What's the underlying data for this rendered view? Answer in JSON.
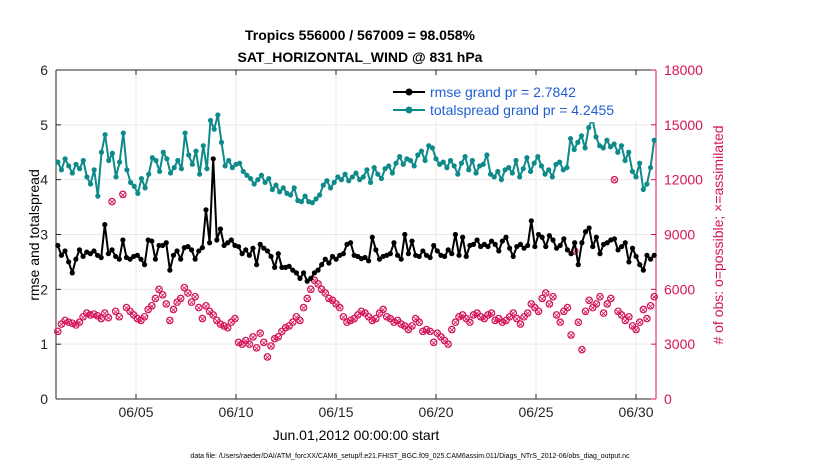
{
  "chart_data": {
    "type": "line",
    "title_line1": "Tropics 556000 / 567009 = 98.058%",
    "title_line2": "SAT_HORIZONTAL_WIND @ 831 hPa",
    "xlabel": "Jun.01,2012 00:00:00 start",
    "ylabel_left": "rmse and totalspread",
    "ylabel_right": "# of obs: o=possible; ×=assimilated",
    "footer": "data file: /Users/raeder/DAI/ATM_forcXX/CAM6_setup/f.e21.FHIST_BGC.f09_025.CAM6assim.011/Diags_NTrS_2012-06/obs_diag_output.nc",
    "x_range_days": [
      1,
      31
    ],
    "ylim_left": [
      0,
      6
    ],
    "ylim_right": [
      0,
      18000
    ],
    "x_ticks": [
      {
        "day": 5,
        "label": "06/05"
      },
      {
        "day": 10,
        "label": "06/10"
      },
      {
        "day": 15,
        "label": "06/15"
      },
      {
        "day": 20,
        "label": "06/20"
      },
      {
        "day": 25,
        "label": "06/25"
      },
      {
        "day": 30,
        "label": "06/30"
      }
    ],
    "y_ticks_left": [
      "0",
      "1",
      "2",
      "3",
      "4",
      "5",
      "6"
    ],
    "y_ticks_right": [
      "0",
      "3000",
      "6000",
      "9000",
      "12000",
      "15000",
      "18000"
    ],
    "series": [
      {
        "name": "rmse",
        "legend": "rmse grand pr = 2.7842",
        "color": "#000000",
        "values": [
          2.8,
          2.62,
          2.7,
          2.5,
          2.3,
          2.55,
          2.72,
          2.6,
          2.68,
          2.65,
          2.7,
          2.62,
          2.58,
          3.18,
          2.65,
          2.72,
          2.6,
          2.55,
          2.9,
          2.58,
          2.55,
          2.6,
          2.62,
          2.55,
          2.45,
          2.9,
          2.88,
          2.55,
          2.8,
          2.8,
          2.85,
          2.35,
          2.62,
          2.7,
          2.55,
          2.76,
          2.78,
          2.72,
          2.55,
          2.7,
          2.76,
          3.45,
          2.85,
          4.38,
          2.9,
          3.1,
          2.8,
          2.85,
          2.9,
          2.8,
          2.78,
          2.65,
          2.72,
          2.62,
          2.75,
          2.45,
          2.82,
          2.75,
          2.7,
          2.6,
          2.4,
          2.65,
          2.4,
          2.4,
          2.42,
          2.35,
          2.3,
          2.2,
          2.3,
          2.15,
          2.2,
          2.3,
          2.35,
          2.45,
          2.55,
          2.48,
          2.6,
          2.55,
          2.62,
          2.65,
          2.82,
          2.85,
          2.62,
          2.6,
          2.56,
          2.58,
          2.52,
          2.95,
          2.72,
          2.55,
          2.6,
          2.62,
          2.65,
          2.85,
          2.62,
          2.55,
          3.0,
          2.65,
          2.88,
          2.62,
          2.6,
          2.7,
          2.62,
          2.58,
          2.8,
          2.7,
          2.62,
          2.6,
          2.72,
          2.65,
          3.0,
          2.62,
          2.95,
          2.6,
          2.8,
          2.82,
          2.9,
          2.78,
          2.82,
          2.78,
          2.88,
          2.82,
          2.7,
          2.88,
          2.95,
          2.75,
          2.6,
          2.78,
          2.82,
          2.75,
          2.8,
          3.25,
          2.78,
          3.0,
          2.95,
          2.78,
          2.98,
          2.9,
          2.75,
          2.8,
          2.92,
          2.72,
          2.65,
          2.85,
          2.45,
          2.85,
          3.05,
          3.12,
          2.78,
          2.95,
          2.65,
          2.82,
          2.85,
          2.9,
          2.92,
          2.72,
          2.78,
          2.85,
          2.5,
          2.75,
          2.6,
          2.45,
          2.35,
          2.62,
          2.55,
          2.62
        ]
      },
      {
        "name": "totalspread",
        "legend": "totalspread grand pr = 4.2455",
        "color": "#0e8a8a",
        "values": [
          4.32,
          4.18,
          4.38,
          4.25,
          4.12,
          4.28,
          4.2,
          4.35,
          4.05,
          3.92,
          4.18,
          3.7,
          4.5,
          4.82,
          4.35,
          4.48,
          4.05,
          4.32,
          4.85,
          4.18,
          3.95,
          3.88,
          3.75,
          4.02,
          3.85,
          4.1,
          4.4,
          4.35,
          4.15,
          4.5,
          4.38,
          4.12,
          4.22,
          4.35,
          4.2,
          4.85,
          4.45,
          4.28,
          4.52,
          4.1,
          4.62,
          4.2,
          5.08,
          4.92,
          5.18,
          4.68,
          4.25,
          4.35,
          4.22,
          4.28,
          4.3,
          4.15,
          4.08,
          4.02,
          3.92,
          4.0,
          4.08,
          3.95,
          4.02,
          3.82,
          3.9,
          3.78,
          3.85,
          3.75,
          3.72,
          3.85,
          3.62,
          3.6,
          3.7,
          3.6,
          3.58,
          3.65,
          3.72,
          3.9,
          3.98,
          3.85,
          3.95,
          4.05,
          4.0,
          4.1,
          3.98,
          4.05,
          4.12,
          4.0,
          4.05,
          4.18,
          3.95,
          4.22,
          4.1,
          4.02,
          4.2,
          4.25,
          4.12,
          4.3,
          4.42,
          4.28,
          4.38,
          4.35,
          4.25,
          4.45,
          4.52,
          4.35,
          4.62,
          4.58,
          4.38,
          4.28,
          4.32,
          4.22,
          4.35,
          4.25,
          4.1,
          4.3,
          4.42,
          4.18,
          4.35,
          4.12,
          4.25,
          4.28,
          4.45,
          4.1,
          4.05,
          4.15,
          4.0,
          4.18,
          4.22,
          4.12,
          4.35,
          4.05,
          4.2,
          4.4,
          4.15,
          4.3,
          4.42,
          4.25,
          4.1,
          4.18,
          4.05,
          4.28,
          4.32,
          4.18,
          4.22,
          4.75,
          4.55,
          4.68,
          4.8,
          4.58,
          4.95,
          5.12,
          4.78,
          4.62,
          4.58,
          4.72,
          4.6,
          4.65,
          4.5,
          4.62,
          4.35,
          4.5,
          4.15,
          4.05,
          4.3,
          3.82,
          3.92,
          4.22,
          4.72
        ]
      },
      {
        "name": "obs_possible",
        "axis": "right",
        "color": "#d4145a",
        "values": [
          3700,
          4100,
          4300,
          4200,
          4150,
          4050,
          4200,
          4500,
          4700,
          4600,
          4650,
          4550,
          4400,
          4700,
          4450,
          10800,
          4800,
          4500,
          11200,
          5000,
          4800,
          4600,
          4400,
          4300,
          4500,
          4900,
          5100,
          5500,
          6000,
          5700,
          5200,
          4300,
          4900,
          5300,
          5500,
          6100,
          5800,
          5300,
          5600,
          5000,
          4400,
          5100,
          4800,
          4600,
          4300,
          4100,
          4000,
          3900,
          4200,
          4400,
          3100,
          3000,
          3200,
          3000,
          3400,
          2800,
          3600,
          3100,
          2300,
          2900,
          3300,
          3400,
          3700,
          3900,
          4000,
          4200,
          4500,
          4300,
          5000,
          5500,
          6000,
          6500,
          6300,
          6000,
          5800,
          5500,
          5400,
          5200,
          5000,
          4500,
          4200,
          4300,
          4400,
          4600,
          4800,
          4700,
          4500,
          4300,
          4400,
          4700,
          4900,
          4500,
          4400,
          4200,
          4300,
          4100,
          4000,
          3800,
          4000,
          4400,
          4200,
          3700,
          3800,
          3700,
          3100,
          3600,
          3400,
          3200,
          3000,
          3800,
          4200,
          4500,
          4600,
          4400,
          4200,
          4600,
          4700,
          4500,
          4400,
          4600,
          4700,
          4300,
          4400,
          4200,
          4300,
          4500,
          4700,
          4400,
          4100,
          4500,
          4700,
          5200,
          5000,
          4800,
          5500,
          5800,
          5200,
          5600,
          4600,
          4200,
          4800,
          5000,
          3500,
          8100,
          4200,
          2700,
          4800,
          5400,
          5000,
          5200,
          5600,
          4700,
          5200,
          5500,
          12000,
          4800,
          4600,
          4300,
          4500,
          4000,
          3800,
          4200,
          4900,
          4400,
          5100,
          5600
        ]
      }
    ]
  }
}
